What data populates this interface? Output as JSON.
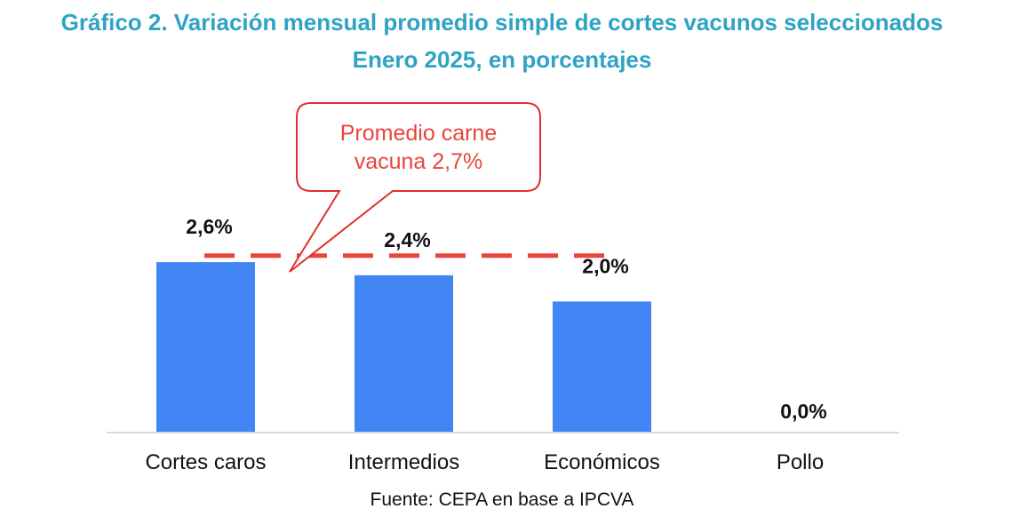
{
  "colors": {
    "title": "#2ea3c4",
    "bar": "#4285f4",
    "average_line": "#e8453c",
    "callout_border": "#e0322c",
    "axis": "#d9d9d9",
    "text": "#111111"
  },
  "chart_data": {
    "type": "bar",
    "title": "Gráfico 2. Variación mensual promedio simple de cortes vacunos seleccionados",
    "subtitle": "Enero 2025, en porcentajes",
    "categories": [
      "Cortes caros",
      "Intermedios",
      "Económicos",
      "Pollo"
    ],
    "values": [
      2.6,
      2.4,
      2.0,
      0.0
    ],
    "value_labels": [
      "2,6%",
      "2,4%",
      "2,0%",
      "0,0%"
    ],
    "ylim": [
      0,
      2.7
    ],
    "grid": false,
    "average": {
      "value": 2.7,
      "label_lines": [
        "Promedio carne",
        "vacuna 2,7%"
      ]
    },
    "source": "Fuente: CEPA en base a IPCVA"
  }
}
